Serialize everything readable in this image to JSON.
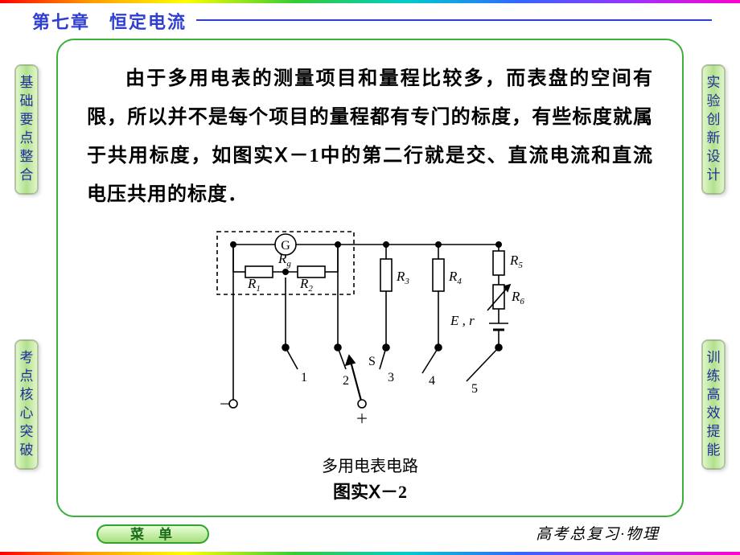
{
  "chapter_title": "第七章　恒定电流",
  "body_text": "由于多用电表的测量项目和量程比较多，而表盘的空间有限，所以并不是每个项目的量程都有专门的标度，有些标度就属于共用标度，如图实Ⅹ－1中的第二行就是交、直流电流和直流电压共用的标度．",
  "side_tabs": {
    "tl": "基础要点整合",
    "bl": "考点核心突破",
    "tr": "实验创新设计",
    "br": "训练高效提能"
  },
  "menu_label": "菜单",
  "footer_text": "高考总复习·物理",
  "diagram": {
    "caption_line1": "多用电表电路",
    "caption_line2": "图实Ⅹ－2",
    "galvanometer_letter": "G",
    "resistors": {
      "Rg": "R",
      "Rg_sub": "g",
      "R1": "R",
      "R1_sub": "1",
      "R2": "R",
      "R2_sub": "2",
      "R3": "R",
      "R3_sub": "3",
      "R4": "R",
      "R4_sub": "4",
      "R5": "R",
      "R5_sub": "5",
      "R6": "R",
      "R6_sub": "6"
    },
    "emf_label": "E , r",
    "switch_label": "S",
    "pos_labels": [
      "1",
      "2",
      "3",
      "4",
      "5"
    ],
    "terminals": {
      "minus": "－",
      "plus": "＋"
    },
    "stroke": "#000000",
    "stroke_width": 1.6
  },
  "colors": {
    "title_blue": "#2f3fd0",
    "panel_border": "#3bb13b",
    "tab_text": "#222da0"
  }
}
